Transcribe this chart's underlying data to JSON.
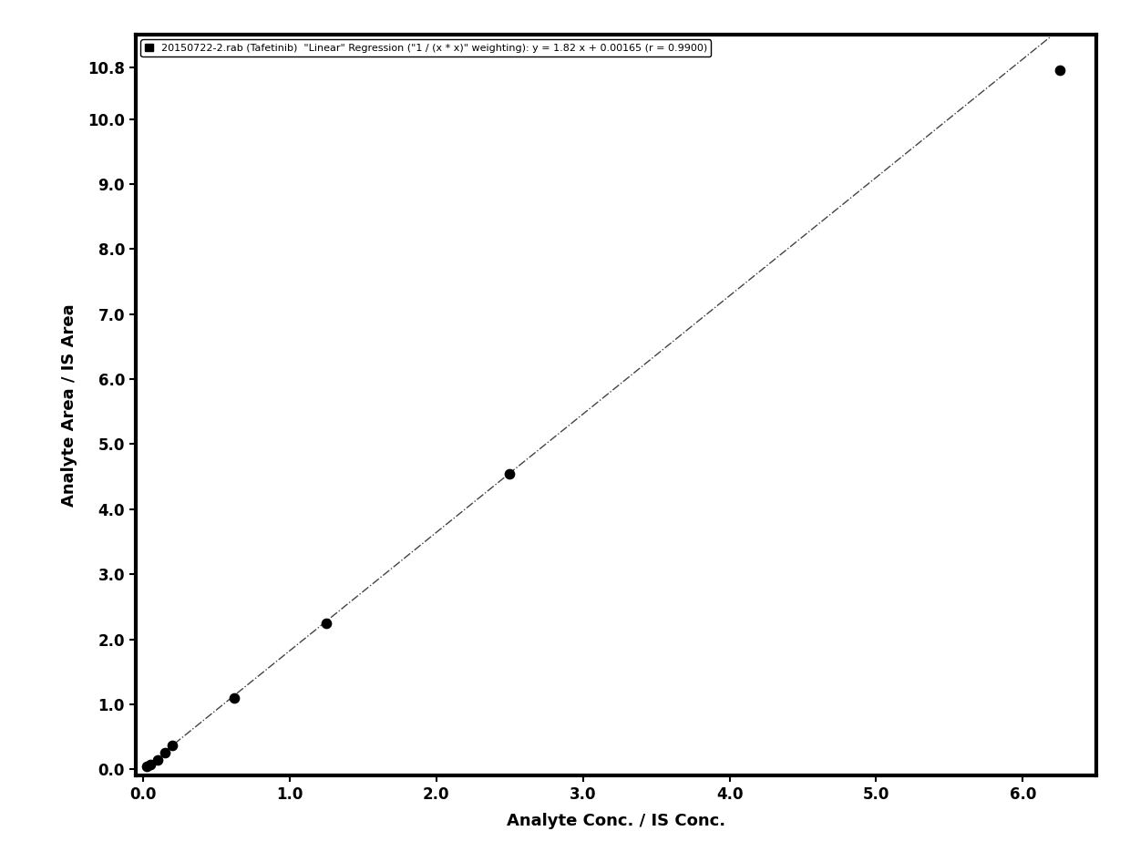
{
  "legend_label": "20150722-2.rab (Tafetinib)  \"Linear\" Regression (\"1 / (x * x)\" weighting): y = 1.82 x + 0.00165 (r = 0.9900)",
  "slope": 1.82,
  "intercept": 0.00165,
  "scatter_x": [
    0.025,
    0.05,
    0.1,
    0.15,
    0.2,
    0.625,
    1.25,
    2.5,
    6.25
  ],
  "scatter_y": [
    0.04,
    0.07,
    0.14,
    0.25,
    0.37,
    1.09,
    2.25,
    4.55,
    10.75
  ],
  "xlim": [
    -0.05,
    6.5
  ],
  "ylim": [
    -0.1,
    11.3
  ],
  "xticks": [
    0.0,
    1.0,
    2.0,
    3.0,
    4.0,
    5.0,
    6.0
  ],
  "yticks": [
    0.0,
    1.0,
    2.0,
    3.0,
    4.0,
    5.0,
    6.0,
    7.0,
    8.0,
    9.0,
    10.0,
    10.8
  ],
  "xlabel": "Analyte Conc. / IS Conc.",
  "ylabel": "Analyte Area / IS Area",
  "line_color": "#444444",
  "scatter_color": "#000000",
  "background_color": "#ffffff",
  "marker_size": 55,
  "line_style": "-.",
  "line_width": 1.0,
  "legend_fontsize": 8,
  "axis_label_fontsize": 13,
  "tick_label_fontsize": 12,
  "border_width": 3.0
}
